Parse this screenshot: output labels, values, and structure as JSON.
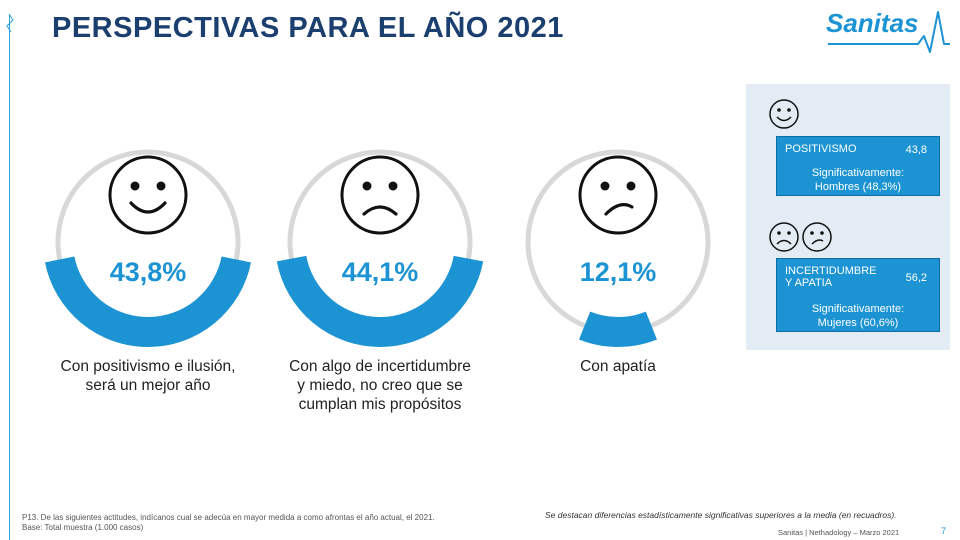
{
  "title": "PERSPECTIVAS PARA EL AÑO 2021",
  "logo": {
    "text": "Sanitas",
    "icon": "heartbeat-line"
  },
  "colors": {
    "accent": "#1c93d2",
    "ring": "#d8d8d8",
    "title": "#1b3f6e",
    "panel": "#e3ecf4"
  },
  "chart_data": {
    "type": "pie",
    "categories": [
      "Con positivismo e ilusión, será un mejor año",
      "Con algo de incertidumbre y miedo, no creo que se cumplan mis propósitos",
      "Con apatía"
    ],
    "values": [
      43.8,
      44.1,
      12.1
    ],
    "unit": "%",
    "items": [
      {
        "label": "43,8%",
        "value": 43.8,
        "face": "happy-face-icon",
        "caption": [
          "Con positivismo  e ilusión,",
          "será un mejor año"
        ]
      },
      {
        "label": "44,1%",
        "value": 44.1,
        "face": "sad-face-icon",
        "caption": [
          "Con algo de incertidumbre",
          "y miedo,  no creo que se",
          "cumplan mis propósitos"
        ]
      },
      {
        "label": "12,1%",
        "value": 12.1,
        "face": "frown-face-icon",
        "caption": [
          "Con apatía"
        ]
      }
    ]
  },
  "panel": {
    "boxes": [
      {
        "label": [
          "POSITIVISMO"
        ],
        "value": "43,8",
        "sig": [
          "Significativamente:",
          "Hombres (48,3%)"
        ],
        "faces": [
          "happy-face-icon"
        ]
      },
      {
        "label": [
          "INCERTIDUMBRE",
          "Y APATIA"
        ],
        "value": "56,2",
        "sig": [
          "Significativamente:",
          "Mujeres (60,6%)"
        ],
        "faces": [
          "sad-face-icon",
          "frown-face-icon"
        ]
      }
    ]
  },
  "footnote": [
    "P13. De las siguientes actitudes, indícanos cual se adecúa en mayor medida a como afrontas el año actual, el 2021.",
    "Base: Total muestra (1.000 casos)"
  ],
  "note": "Se destacan diferencias estadísticamente significativas superiores a la media (en recuadros).",
  "credit": "Sanitas | Nethadology – Marzo 2021",
  "page_number": "7"
}
